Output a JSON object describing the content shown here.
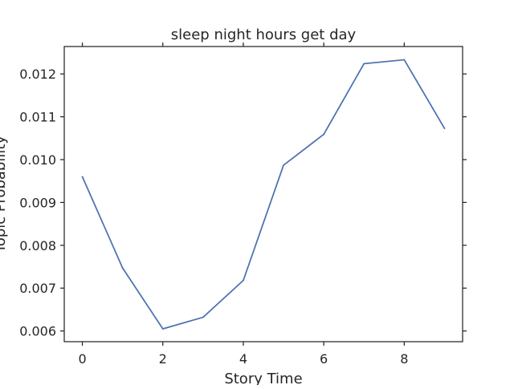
{
  "chart_data": {
    "type": "line",
    "title": "sleep night hours get day",
    "xlabel": "Story Time",
    "ylabel": "Topic Probability",
    "x": [
      0,
      1,
      2,
      3,
      4,
      5,
      6,
      7,
      8,
      9
    ],
    "series": [
      {
        "values": [
          0.0096,
          0.00747,
          0.00605,
          0.00632,
          0.00718,
          0.00987,
          0.01059,
          0.01224,
          0.01233,
          0.01073
        ],
        "color": "#4c72b0"
      }
    ],
    "xlim": [
      -0.45,
      9.45
    ],
    "ylim": [
      0.00575,
      0.01264
    ],
    "xticks": [
      0,
      2,
      4,
      6,
      8
    ],
    "xtick_labels": [
      "0",
      "2",
      "4",
      "6",
      "8"
    ],
    "yticks": [
      0.006,
      0.007,
      0.008,
      0.009,
      0.01,
      0.011,
      0.012
    ],
    "ytick_labels": [
      "0.006",
      "0.007",
      "0.008",
      "0.009",
      "0.010",
      "0.011",
      "0.012"
    ],
    "grid": false,
    "ticks_mirrored": true
  }
}
